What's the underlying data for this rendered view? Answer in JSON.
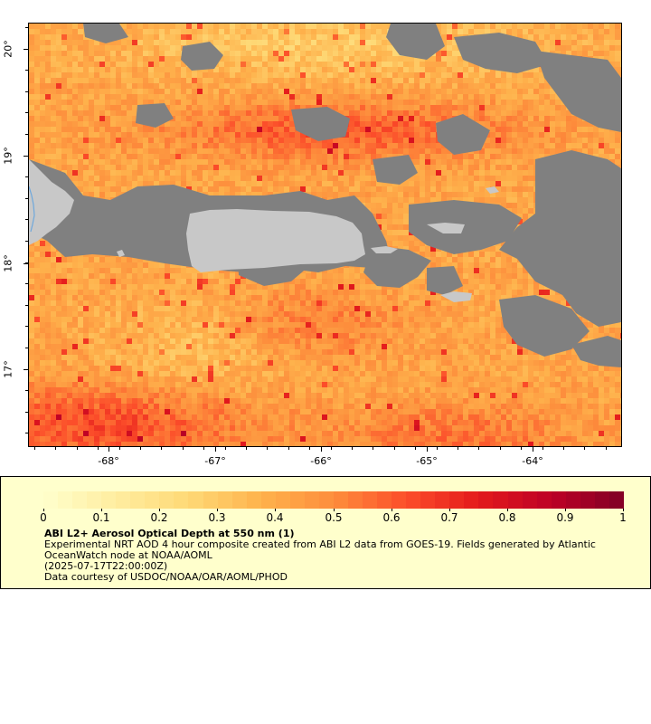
{
  "map": {
    "longitude_labels": [
      "-68°",
      "-67°",
      "-66°",
      "-65°",
      "-64°"
    ],
    "latitude_labels": [
      "20°",
      "19°",
      "18°",
      "17°"
    ],
    "colors": {
      "land": "#c8c8c8",
      "no_data_cloud": "#808080",
      "water_line": "#6fa8dc",
      "frame": "#000000"
    }
  },
  "legend": {
    "background": "#ffffcc",
    "scale_min": 0,
    "scale_max": 1,
    "tick_labels": [
      "0",
      "0.1",
      "0.2",
      "0.3",
      "0.4",
      "0.5",
      "0.6",
      "0.7",
      "0.8",
      "0.9",
      "1"
    ],
    "colormap_stops": [
      "#ffffcc",
      "#ffeda0",
      "#fed976",
      "#feb24c",
      "#fd8d3c",
      "#fc4e2a",
      "#e31a1c",
      "#bd0026",
      "#800026"
    ],
    "title": "ABI L2+ Aerosol Optical Depth at 550 nm (1)",
    "description": "Experimental NRT AOD 4 hour composite created from ABI L2 data from GOES-19. Fields generated by Atlantic OceanWatch node at NOAA/AOML",
    "timestamp": "(2025-07-17T22:00:00Z)",
    "credit": "Data courtesy of USDOC/NOAA/OAR/AOML/PHOD"
  }
}
